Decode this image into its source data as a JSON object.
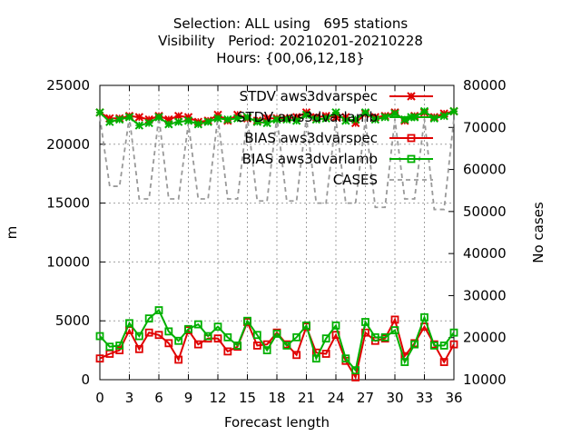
{
  "title_lines": [
    "Selection: ALL using   695 stations",
    "Visibility   Period: 20210201-20210228",
    "Hours: {00,06,12,18}"
  ],
  "chart_data": {
    "type": "line",
    "xlabel": "Forecast length",
    "ylabel": "m",
    "y2label": "No cases",
    "xlim": [
      0,
      36
    ],
    "ylim": [
      0,
      25000
    ],
    "y2lim": [
      10000,
      80000
    ],
    "xticks": [
      "0",
      "3",
      "6",
      "9",
      "12",
      "15",
      "18",
      "21",
      "24",
      "27",
      "30",
      "33",
      "36"
    ],
    "yticks": [
      "0",
      "5000",
      "10000",
      "15000",
      "20000",
      "25000"
    ],
    "y2ticks": [
      "10000",
      "20000",
      "30000",
      "40000",
      "50000",
      "60000",
      "70000",
      "80000"
    ],
    "grid": true,
    "legend_position": "top-right",
    "x": [
      0,
      1,
      2,
      3,
      4,
      5,
      6,
      7,
      8,
      9,
      10,
      11,
      12,
      13,
      14,
      15,
      16,
      17,
      18,
      19,
      20,
      21,
      22,
      23,
      24,
      25,
      26,
      27,
      28,
      29,
      30,
      31,
      32,
      33,
      34,
      35,
      36
    ],
    "series": [
      {
        "name": "STDV aws3dvarspec",
        "axis": "y1",
        "color": "#e00000",
        "marker": "x",
        "values": [
          22700,
          22200,
          22200,
          22400,
          22300,
          22100,
          22400,
          22100,
          22400,
          22300,
          21900,
          22000,
          22500,
          22000,
          22500,
          22200,
          22000,
          22200,
          22200,
          22200,
          22300,
          22700,
          22300,
          22400,
          22300,
          22300,
          21800,
          22600,
          22300,
          22400,
          22700,
          22000,
          22400,
          22700,
          22300,
          22600,
          22800
        ]
      },
      {
        "name": "STDV aws3dvarlamb",
        "axis": "y1",
        "color": "#00b000",
        "marker": "x",
        "values": [
          22700,
          21900,
          22100,
          22300,
          21600,
          21800,
          22300,
          21700,
          21900,
          22000,
          21700,
          21900,
          22200,
          22100,
          22200,
          22300,
          21900,
          21800,
          22100,
          22100,
          22000,
          22500,
          22100,
          22200,
          22700,
          22000,
          22100,
          22700,
          22100,
          22300,
          22600,
          22100,
          22300,
          22800,
          22200,
          22400,
          22800
        ]
      },
      {
        "name": "BIAS aws3dvarspec",
        "axis": "y1",
        "color": "#e00000",
        "marker": "square",
        "values": [
          1800,
          2200,
          2500,
          4200,
          2600,
          4000,
          3800,
          3100,
          1700,
          4200,
          3000,
          3500,
          3500,
          2400,
          2800,
          4900,
          2900,
          3000,
          4000,
          3000,
          2100,
          4500,
          2300,
          2200,
          3800,
          1600,
          200,
          4000,
          3300,
          3500,
          5100,
          2000,
          3100,
          4500,
          3000,
          1500,
          3000
        ]
      },
      {
        "name": "BIAS aws3dvarlamb",
        "axis": "y1",
        "color": "#00b000",
        "marker": "square",
        "values": [
          3700,
          2800,
          2900,
          4800,
          3700,
          5200,
          5900,
          4100,
          3300,
          4300,
          4700,
          3700,
          4500,
          3600,
          2900,
          5000,
          3800,
          2500,
          3900,
          2900,
          3600,
          4600,
          1800,
          3500,
          4600,
          1800,
          800,
          4900,
          3600,
          3600,
          4200,
          1500,
          3000,
          5300,
          2900,
          2900,
          4000
        ]
      },
      {
        "name": "CASES",
        "axis": "y2",
        "color": "#999999",
        "dash": true,
        "values": [
          72500,
          56000,
          56000,
          72500,
          53000,
          53000,
          72500,
          53000,
          53000,
          71000,
          53000,
          53000,
          72500,
          53000,
          53000,
          72500,
          52500,
          52500,
          72500,
          52500,
          52500,
          72500,
          52000,
          52000,
          72000,
          52000,
          52000,
          72000,
          51000,
          51000,
          72000,
          53000,
          53000,
          72000,
          50500,
          50500,
          72000
        ]
      }
    ]
  }
}
